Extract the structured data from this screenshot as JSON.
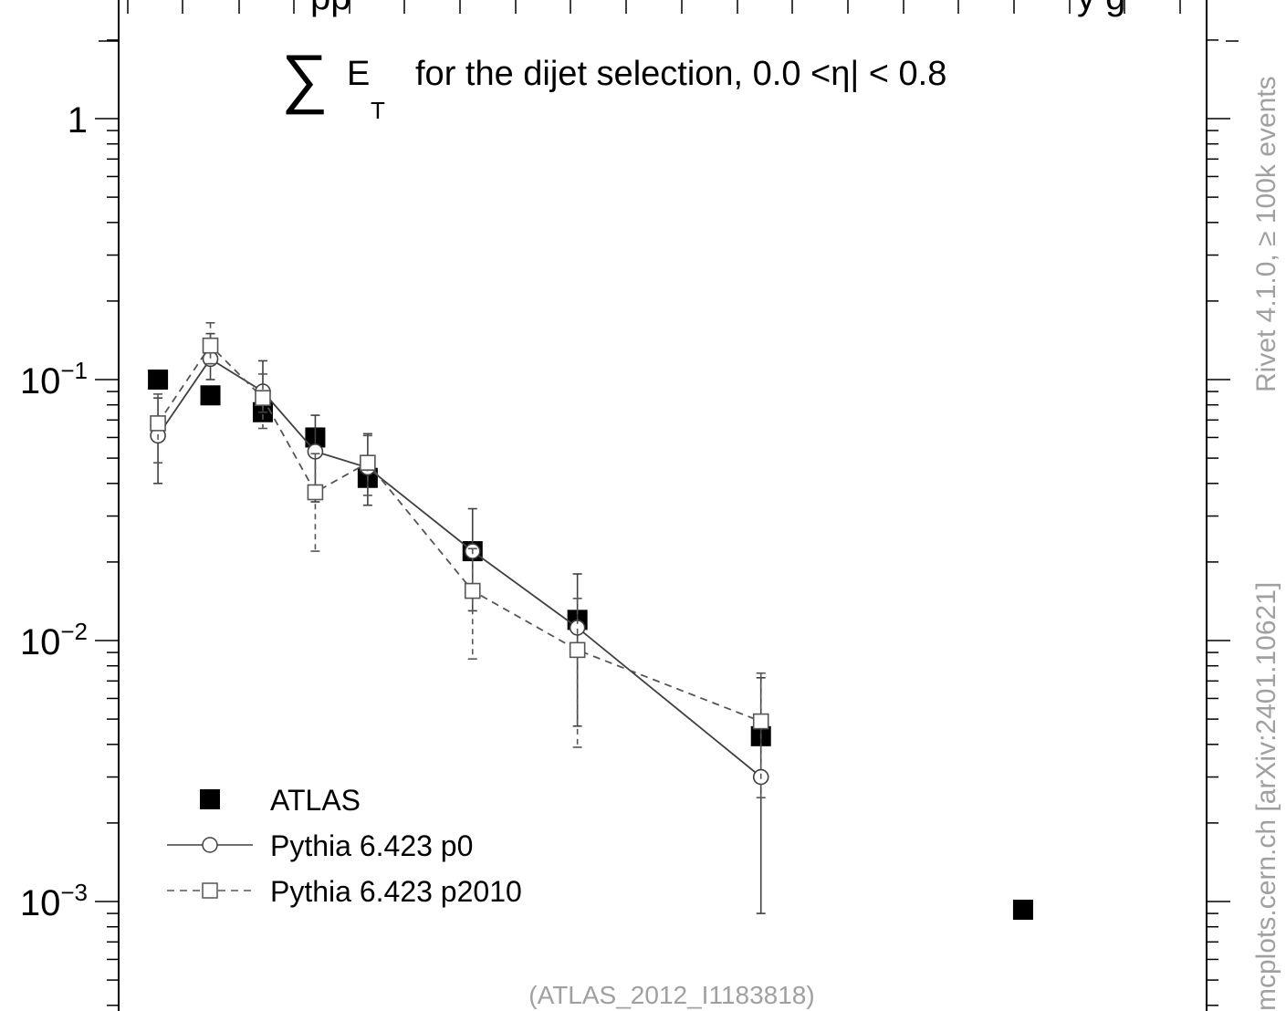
{
  "chart_data": {
    "type": "scatter",
    "title_prefix": "∑",
    "title_symbol": "E",
    "title_subscript": "T",
    "title_text": "for the dijet selection, 0.0 <η| < 0.8",
    "top_clipped_text": "pp",
    "top_clipped_text_right": "y g",
    "yscale": "log",
    "ylim": [
      0.0004,
      2.2
    ],
    "xlim": [
      -2.5,
      205
    ],
    "ytick_labels": [
      {
        "value": 1,
        "base": "1",
        "exp": ""
      },
      {
        "value": 0.1,
        "base": "10",
        "exp": "−1"
      },
      {
        "value": 0.01,
        "base": "10",
        "exp": "−2"
      },
      {
        "value": 0.001,
        "base": "10",
        "exp": "−3"
      }
    ],
    "series": [
      {
        "name": "ATLAS",
        "marker": "filled-square",
        "color": "#000000",
        "x": [
          5,
          15,
          25,
          35,
          45,
          65,
          85,
          120,
          170
        ],
        "y": [
          0.1,
          0.087,
          0.075,
          0.06,
          0.042,
          0.022,
          0.012,
          0.0043,
          0.00093
        ]
      },
      {
        "name": "Pythia 6.423 p0",
        "marker": "open-circle",
        "line": "solid",
        "color": "#404040",
        "x": [
          5,
          15,
          25,
          35,
          45,
          65,
          85,
          120
        ],
        "y": [
          0.061,
          0.12,
          0.09,
          0.053,
          0.046,
          0.022,
          0.0112,
          0.003
        ],
        "yerr_low": [
          0.04,
          0.1,
          0.075,
          0.034,
          0.033,
          0.013,
          0.0047,
          0.0009
        ],
        "yerr_high": [
          0.085,
          0.15,
          0.118,
          0.073,
          0.062,
          0.032,
          0.018,
          0.0072
        ]
      },
      {
        "name": "Pythia 6.423 p2010",
        "marker": "open-square",
        "line": "dashed",
        "color": "#555555",
        "x": [
          5,
          15,
          25,
          35,
          45,
          65,
          85,
          120
        ],
        "y": [
          0.068,
          0.135,
          0.085,
          0.037,
          0.048,
          0.0155,
          0.0092,
          0.0049
        ],
        "yerr_low": [
          0.048,
          0.115,
          0.065,
          0.022,
          0.036,
          0.0085,
          0.0039,
          0.0025
        ],
        "yerr_high": [
          0.088,
          0.165,
          0.105,
          0.052,
          0.061,
          0.0225,
          0.0145,
          0.0075
        ]
      }
    ],
    "legend": {
      "position": "bottom-left",
      "entries": [
        "ATLAS",
        "Pythia 6.423 p0",
        "Pythia 6.423 p2010"
      ]
    },
    "footer": "(ATLAS_2012_I1183818)",
    "side_label_top": "Rivet 4.1.0, ≥ 100k events",
    "side_label_bottom": "mcplots.cern.ch [arXiv:2401.10621]"
  }
}
